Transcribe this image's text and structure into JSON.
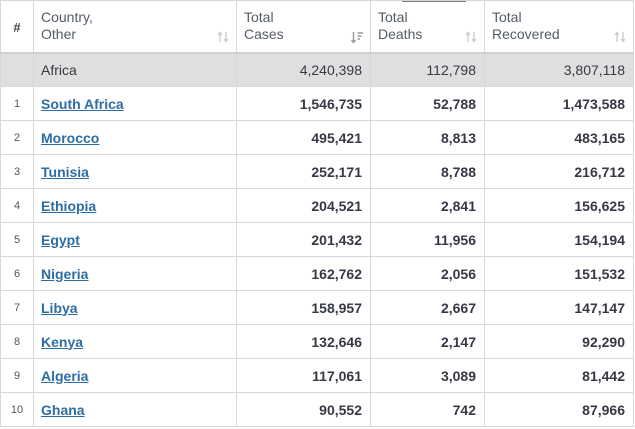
{
  "header": {
    "num": "#",
    "country": "Country,\nOther",
    "cases": "Total\nCases",
    "deaths": "Total\nDeaths",
    "recovered": "Total\nRecovered"
  },
  "total": {
    "name": "Africa",
    "cases": "4,240,398",
    "deaths": "112,798",
    "recovered": "3,807,118"
  },
  "rows": [
    {
      "num": "1",
      "country": "South Africa",
      "cases": "1,546,735",
      "deaths": "52,788",
      "recovered": "1,473,588"
    },
    {
      "num": "2",
      "country": "Morocco",
      "cases": "495,421",
      "deaths": "8,813",
      "recovered": "483,165"
    },
    {
      "num": "3",
      "country": "Tunisia",
      "cases": "252,171",
      "deaths": "8,788",
      "recovered": "216,712"
    },
    {
      "num": "4",
      "country": "Ethiopia",
      "cases": "204,521",
      "deaths": "2,841",
      "recovered": "156,625"
    },
    {
      "num": "5",
      "country": "Egypt",
      "cases": "201,432",
      "deaths": "11,956",
      "recovered": "154,194"
    },
    {
      "num": "6",
      "country": "Nigeria",
      "cases": "162,762",
      "deaths": "2,056",
      "recovered": "151,532"
    },
    {
      "num": "7",
      "country": "Libya",
      "cases": "158,957",
      "deaths": "2,667",
      "recovered": "147,147"
    },
    {
      "num": "8",
      "country": "Kenya",
      "cases": "132,646",
      "deaths": "2,147",
      "recovered": "92,290"
    },
    {
      "num": "9",
      "country": "Algeria",
      "cases": "117,061",
      "deaths": "3,089",
      "recovered": "81,442"
    },
    {
      "num": "10",
      "country": "Ghana",
      "cases": "90,552",
      "deaths": "742",
      "recovered": "87,966"
    }
  ],
  "colors": {
    "link": "#2e6da4",
    "total_row_bg": "#dfdfdf",
    "border": "#d8d8d8"
  },
  "icons": {
    "sort": "sort-arrows-icon",
    "sort_active": "sort-desc-icon"
  }
}
